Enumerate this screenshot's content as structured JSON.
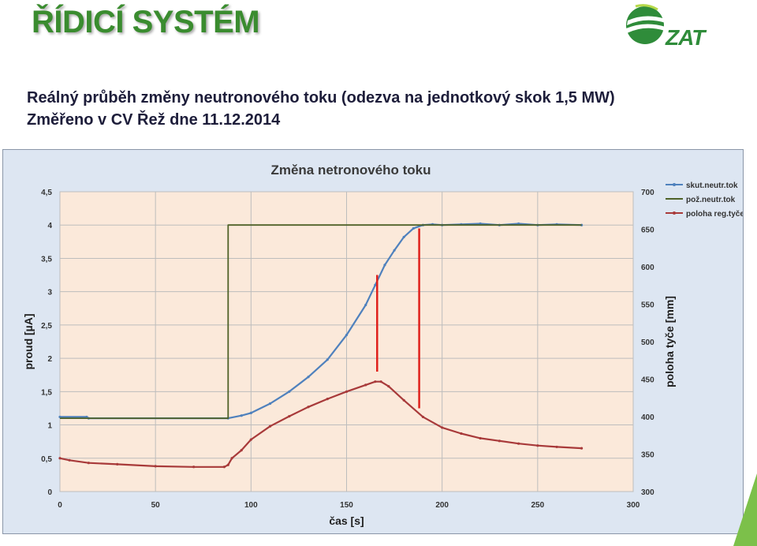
{
  "slide": {
    "title": "ŘÍDICÍ SYSTÉM",
    "subtitle_line1": "Reálný průběh změny neutronového toku (odezva na jednotkový skok  1,5 MW)",
    "subtitle_line2": "Změřeno v CV Řež dne 11.12.2014",
    "logo_text": "ZAT",
    "brand_color": "#3a8c2f"
  },
  "chart_data": {
    "type": "line",
    "title": "Změna netronového toku",
    "xlabel": "čas [s]",
    "ylabel": "proud [µA]",
    "y2label": "poloha tyče [mm]",
    "xlim": [
      0,
      300
    ],
    "ylim": [
      0,
      4.5
    ],
    "y2lim": [
      300,
      700
    ],
    "xticks": [
      0,
      50,
      100,
      150,
      200,
      250,
      300
    ],
    "yticks": [
      "0",
      "0,5",
      "1",
      "1,5",
      "2",
      "2,5",
      "3",
      "3,5",
      "4",
      "4,5"
    ],
    "y2ticks": [
      300,
      350,
      400,
      450,
      500,
      550,
      600,
      650,
      700
    ],
    "grid": true,
    "legend_position": "top-right",
    "series": [
      {
        "name": "skut.neutr.tok",
        "axis": "left",
        "color": "#4f81bd",
        "marker": true,
        "points": [
          [
            0,
            1.12
          ],
          [
            14,
            1.12
          ],
          [
            15,
            1.1
          ],
          [
            88,
            1.1
          ],
          [
            95,
            1.14
          ],
          [
            100,
            1.18
          ],
          [
            110,
            1.32
          ],
          [
            120,
            1.5
          ],
          [
            130,
            1.72
          ],
          [
            140,
            1.98
          ],
          [
            150,
            2.35
          ],
          [
            160,
            2.8
          ],
          [
            165,
            3.1
          ],
          [
            170,
            3.4
          ],
          [
            175,
            3.62
          ],
          [
            180,
            3.82
          ],
          [
            185,
            3.95
          ],
          [
            190,
            4.0
          ],
          [
            195,
            4.01
          ],
          [
            200,
            4.0
          ],
          [
            210,
            4.01
          ],
          [
            220,
            4.02
          ],
          [
            230,
            4.0
          ],
          [
            240,
            4.02
          ],
          [
            250,
            4.0
          ],
          [
            260,
            4.01
          ],
          [
            273,
            4.0
          ]
        ]
      },
      {
        "name": "pož.neutr.tok",
        "axis": "left",
        "color": "#4f6228",
        "marker": false,
        "points": [
          [
            0,
            1.1
          ],
          [
            88,
            1.1
          ],
          [
            88,
            4.0
          ],
          [
            273,
            4.0
          ]
        ]
      },
      {
        "name": "poloha reg.tyče",
        "axis": "right",
        "color": "#a83a3a",
        "marker": true,
        "points": [
          [
            0,
            0.5
          ],
          [
            5,
            0.47
          ],
          [
            15,
            0.43
          ],
          [
            30,
            0.41
          ],
          [
            50,
            0.38
          ],
          [
            70,
            0.37
          ],
          [
            86,
            0.37
          ],
          [
            88,
            0.4
          ],
          [
            90,
            0.5
          ],
          [
            95,
            0.62
          ],
          [
            100,
            0.78
          ],
          [
            110,
            0.98
          ],
          [
            120,
            1.13
          ],
          [
            130,
            1.27
          ],
          [
            140,
            1.39
          ],
          [
            150,
            1.5
          ],
          [
            160,
            1.6
          ],
          [
            165,
            1.65
          ],
          [
            168,
            1.65
          ],
          [
            172,
            1.58
          ],
          [
            180,
            1.37
          ],
          [
            190,
            1.12
          ],
          [
            200,
            0.96
          ],
          [
            210,
            0.87
          ],
          [
            220,
            0.8
          ],
          [
            230,
            0.76
          ],
          [
            240,
            0.72
          ],
          [
            250,
            0.69
          ],
          [
            260,
            0.67
          ],
          [
            273,
            0.65
          ]
        ]
      }
    ],
    "markers": [
      {
        "x": 166,
        "y_from": 1.8,
        "y_to": 3.25,
        "color": "#e0201b"
      },
      {
        "x": 188,
        "y_from": 1.25,
        "y_to": 3.95,
        "color": "#e0201b"
      }
    ]
  }
}
